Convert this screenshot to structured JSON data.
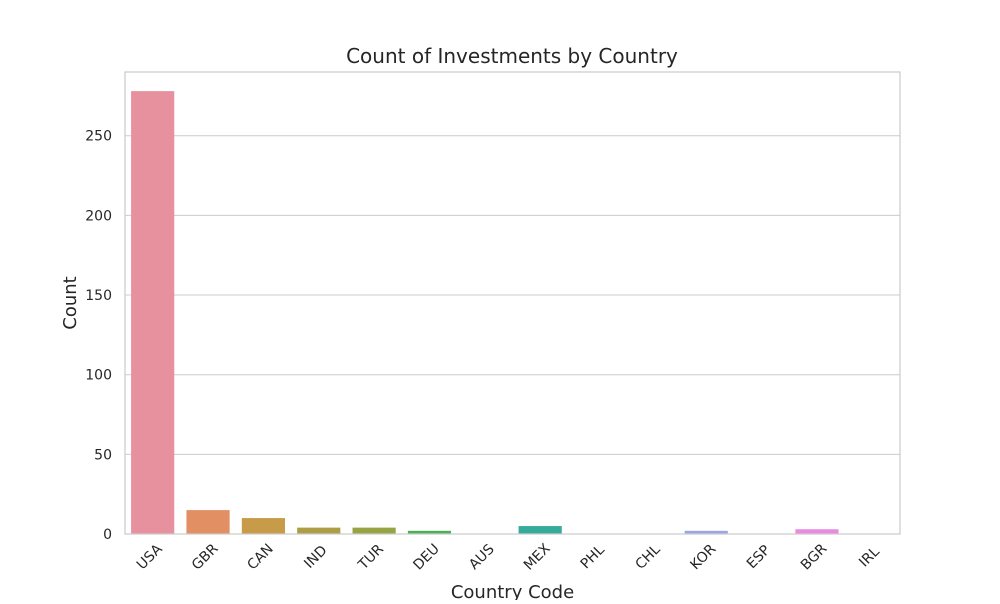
{
  "chart_data": {
    "type": "bar",
    "title": "Count of Investments by Country",
    "xlabel": "Country Code",
    "ylabel": "Count",
    "categories": [
      "USA",
      "GBR",
      "CAN",
      "IND",
      "TUR",
      "DEU",
      "AUS",
      "MEX",
      "PHL",
      "CHL",
      "KOR",
      "ESP",
      "BGR",
      "IRL"
    ],
    "values": [
      278,
      15,
      10,
      4,
      4,
      2,
      0,
      5,
      0,
      0,
      2,
      0,
      3,
      0
    ],
    "ylim": [
      0,
      290
    ],
    "yticks": [
      0,
      50,
      100,
      150,
      200,
      250
    ],
    "grid": true,
    "legend": "none",
    "colors": [
      "#e8919e",
      "#e28f64",
      "#c79b47",
      "#ad9d45",
      "#97a443",
      "#4caf58",
      "#52b08f",
      "#36ab9c",
      "#3ea9b7",
      "#43a5cf",
      "#99a7e6",
      "#c69ae8",
      "#e88ae2",
      "#eb8ac1"
    ]
  }
}
